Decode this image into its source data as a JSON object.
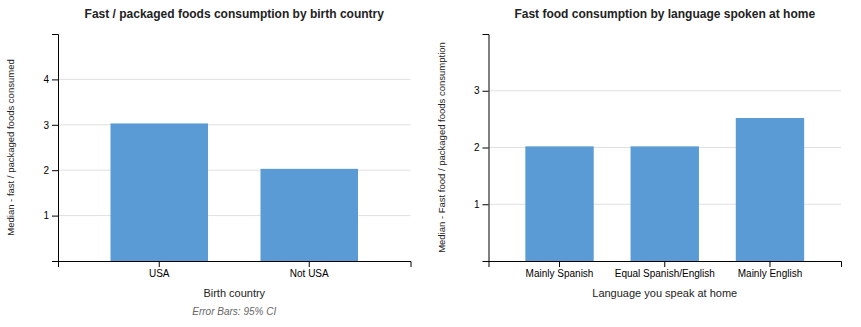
{
  "chart_data": [
    {
      "type": "bar",
      "title": "Fast / packaged foods consumption by birth country",
      "categories": [
        "USA",
        "Not USA"
      ],
      "values": [
        3.03,
        2.03
      ],
      "xlabel": "Birth country",
      "ylabel": "Median - fast / packaged foods consumed",
      "annotation": "Error Bars: 95% CI",
      "color": "#5B9BD5",
      "ylim": [
        0,
        5
      ],
      "yticks": [
        1,
        2,
        3,
        4
      ],
      "grid": true
    },
    {
      "type": "bar",
      "title": "Fast food consumption by language spoken at home",
      "categories": [
        "Mainly Spanish",
        "Equal Spanish/English",
        "Mainly English"
      ],
      "values": [
        2.02,
        2.02,
        2.52
      ],
      "xlabel": "Language you speak at home",
      "ylabel": "Median - Fast food / packaged foods consumption",
      "color": "#5B9BD5",
      "ylim": [
        0,
        4
      ],
      "yticks": [
        1,
        2,
        3
      ],
      "grid": true
    }
  ]
}
